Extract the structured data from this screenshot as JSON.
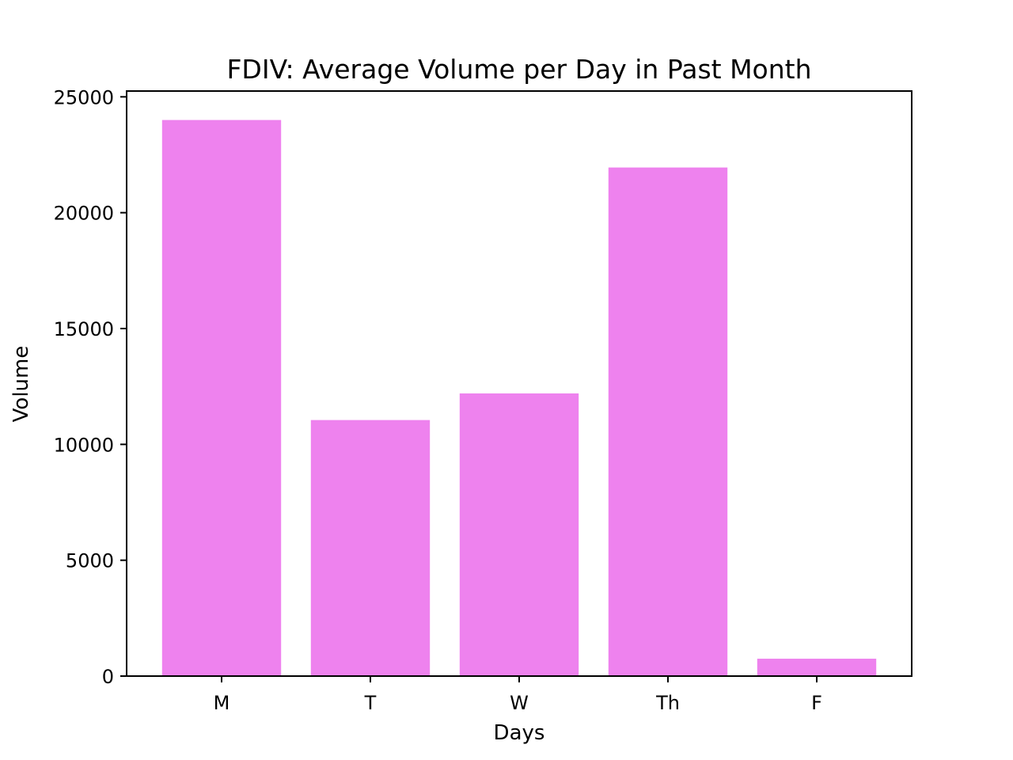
{
  "chart_data": {
    "type": "bar",
    "title": "FDIV: Average Volume per Day in Past Month",
    "xlabel": "Days",
    "ylabel": "Volume",
    "categories": [
      "M",
      "T",
      "W",
      "Th",
      "F"
    ],
    "values": [
      24000,
      11050,
      12200,
      21950,
      750
    ],
    "ylim": [
      0,
      25250
    ],
    "yticks": [
      0,
      5000,
      10000,
      15000,
      20000,
      25000
    ],
    "bar_color": "#ee82ee",
    "grid": false,
    "legend": "none"
  }
}
